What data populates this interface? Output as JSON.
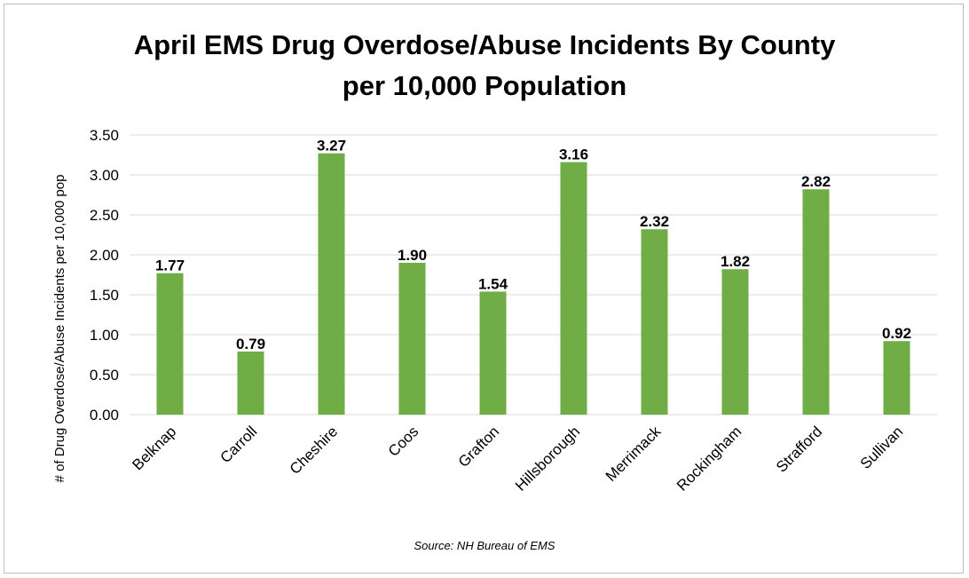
{
  "chart_data": {
    "type": "bar",
    "title_lines": [
      "April EMS Drug Overdose/Abuse Incidents By County",
      "per 10,000 Population"
    ],
    "ylabel": "# of Drug Overdose/Abuse Incidents per 10,000 pop",
    "xlabel": "",
    "ylim": [
      0,
      3.5
    ],
    "ytick_step": 0.5,
    "grid": true,
    "legend": "none",
    "categories": [
      "Belknap",
      "Carroll",
      "Cheshire",
      "Coos",
      "Grafton",
      "Hillsborough",
      "Merrimack",
      "Rockingham",
      "Strafford",
      "Sullivan"
    ],
    "values": [
      1.77,
      0.79,
      3.27,
      1.9,
      1.54,
      3.16,
      2.32,
      1.82,
      2.82,
      0.92
    ],
    "data_labels": [
      "1.77",
      "0.79",
      "3.27",
      "1.90",
      "1.54",
      "3.16",
      "2.32",
      "1.82",
      "2.82",
      "0.92"
    ],
    "ytick_labels": [
      "0.00",
      "0.50",
      "1.00",
      "1.50",
      "2.00",
      "2.50",
      "3.00",
      "3.50"
    ],
    "bar_color": "#70ad47",
    "source": "Source: NH Bureau of EMS"
  }
}
